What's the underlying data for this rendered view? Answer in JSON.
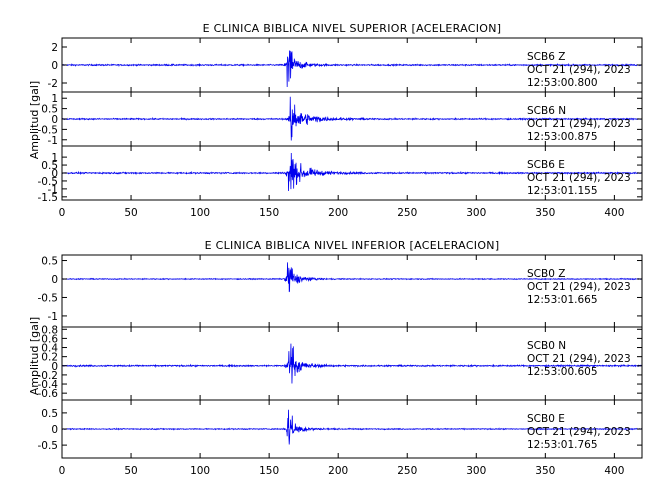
{
  "chart_data": [
    {
      "type": "line",
      "title": "E CLINICA BIBLICA NIVEL SUPERIOR [ACELERACION]",
      "ylabel": "Amplitud [gal]",
      "xlim": [
        0,
        420
      ],
      "xticks": [
        0,
        50,
        100,
        150,
        200,
        250,
        300,
        350,
        400
      ],
      "panels": [
        {
          "ylim": [
            -3,
            3
          ],
          "yticks": [
            -2,
            0,
            2
          ],
          "annotation": [
            "SCB6   Z",
            "OCT 21 (294), 2023",
            "12:53:00.800"
          ],
          "peak_time": 163,
          "peak_amp": 2.6,
          "noise": 0.12,
          "decay": 7
        },
        {
          "ylim": [
            -1.3,
            1.3
          ],
          "yticks": [
            -1.0,
            -0.5,
            0.0,
            0.5,
            1.0
          ],
          "annotation": [
            "SCB6   N",
            "OCT 21 (294), 2023",
            "12:53:00.875"
          ],
          "peak_time": 165,
          "peak_amp": 1.1,
          "noise": 0.05,
          "decay": 12
        },
        {
          "ylim": [
            -1.7,
            1.7
          ],
          "yticks": [
            -1.5,
            -1.0,
            -0.5,
            0.0,
            0.5,
            1.0
          ],
          "annotation": [
            "SCB6   E",
            "OCT 21 (294), 2023",
            "12:53:01.155"
          ],
          "peak_time": 164,
          "peak_amp": 1.5,
          "noise": 0.07,
          "decay": 12
        }
      ]
    },
    {
      "type": "line",
      "title": "E CLINICA BIBLICA NIVEL INFERIOR [ACELERACION]",
      "ylabel": "Amplitud [gal]",
      "xlim": [
        0,
        420
      ],
      "xticks": [
        0,
        50,
        100,
        150,
        200,
        250,
        300,
        350,
        400
      ],
      "panels": [
        {
          "ylim": [
            -1.3,
            0.65
          ],
          "yticks": [
            -1.0,
            -0.5,
            0.0,
            0.5
          ],
          "annotation": [
            "SCB0   Z",
            "OCT 21 (294), 2023",
            "12:53:01.665"
          ],
          "peak_time": 163,
          "peak_amp": 0.55,
          "noise": 0.02,
          "decay": 7
        },
        {
          "ylim": [
            -0.75,
            0.85
          ],
          "yticks": [
            -0.6,
            -0.4,
            -0.2,
            0.0,
            0.2,
            0.4,
            0.6,
            0.8
          ],
          "annotation": [
            "SCB0   N",
            "OCT 21 (294), 2023",
            "12:53:00.605"
          ],
          "peak_time": 164,
          "peak_amp": 0.7,
          "noise": 0.025,
          "decay": 7
        },
        {
          "ylim": [
            -0.9,
            0.9
          ],
          "yticks": [
            -0.5,
            0.0,
            0.5
          ],
          "annotation": [
            "SCB0   E",
            "OCT 21 (294), 2023",
            "12:53:01.765"
          ],
          "peak_time": 163,
          "peak_amp": 0.7,
          "noise": 0.025,
          "decay": 7
        }
      ]
    }
  ]
}
